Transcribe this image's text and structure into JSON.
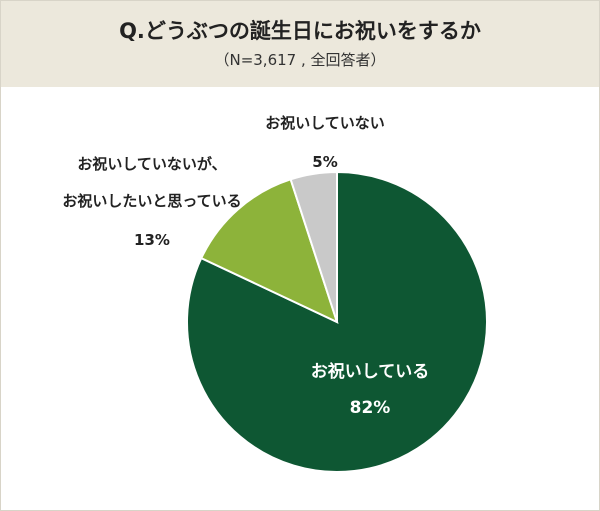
{
  "header": {
    "title": "Q.どうぶつの誕生日にお祝いをするか",
    "subtitle": "（N=3,617 , 全回答者）"
  },
  "colors": {
    "header_bg": "#ece8dc",
    "slice_celebrate": "#0e5733",
    "slice_want": "#8db33a",
    "slice_not": "#c9c9c9"
  },
  "chart_data": {
    "type": "pie",
    "title": "Q.どうぶつの誕生日にお祝いをするか",
    "subtitle": "（N=3,617 , 全回答者）",
    "slices": [
      {
        "label": "お祝いしている",
        "value": 82,
        "value_label": "82%",
        "color": "#0e5733"
      },
      {
        "label_lines": [
          "お祝いしていないが、",
          "お祝いしたいと思っている"
        ],
        "value": 13,
        "value_label": "13%",
        "color": "#8db33a"
      },
      {
        "label": "お祝いしていない",
        "value": 5,
        "value_label": "5%",
        "color": "#c9c9c9"
      }
    ]
  }
}
